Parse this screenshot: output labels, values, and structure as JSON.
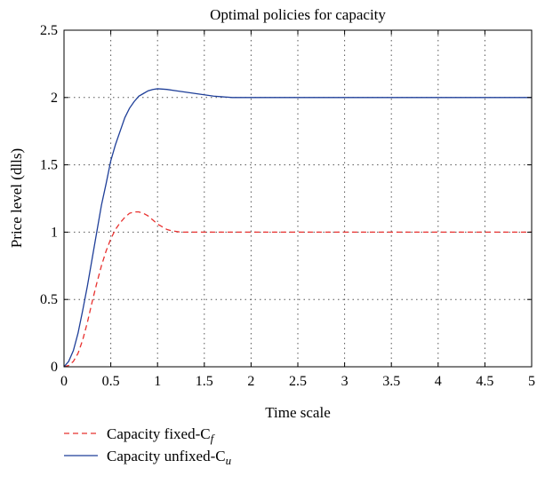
{
  "chart_data": {
    "type": "line",
    "title": "Optimal policies for capacity",
    "xlabel": "Time scale",
    "ylabel": "Price level (dlls)",
    "xlim": [
      0,
      5
    ],
    "ylim": [
      0,
      2.5
    ],
    "x_ticks": [
      "0",
      "0.5",
      "1",
      "1.5",
      "2",
      "2.5",
      "3",
      "3.5",
      "4",
      "4.5",
      "5"
    ],
    "y_ticks": [
      "0",
      "0.5",
      "1",
      "1.5",
      "2",
      "2.5"
    ],
    "grid": true,
    "legend_position": "below",
    "series": [
      {
        "name": "Capacity fixed-C",
        "subscript": "f",
        "color": "#e8312f",
        "style": "dashed",
        "x": [
          0,
          0.05,
          0.1,
          0.15,
          0.2,
          0.25,
          0.3,
          0.35,
          0.4,
          0.45,
          0.5,
          0.55,
          0.6,
          0.65,
          0.7,
          0.75,
          0.8,
          0.85,
          0.9,
          0.95,
          1.0,
          1.05,
          1.1,
          1.15,
          1.2,
          1.25,
          1.3,
          1.5,
          2.0,
          2.5,
          3.0,
          3.5,
          4.0,
          4.5,
          5.0
        ],
        "y": [
          0,
          0.01,
          0.04,
          0.1,
          0.2,
          0.33,
          0.48,
          0.62,
          0.75,
          0.86,
          0.95,
          1.02,
          1.07,
          1.11,
          1.14,
          1.15,
          1.15,
          1.14,
          1.12,
          1.09,
          1.06,
          1.04,
          1.02,
          1.01,
          1.005,
          1.0,
          1.0,
          1.0,
          1.0,
          1.0,
          1.0,
          1.0,
          1.0,
          1.0,
          1.0
        ]
      },
      {
        "name": "Capacity unfixed-C",
        "subscript": "u",
        "color": "#1f3f99",
        "style": "solid",
        "x": [
          0,
          0.05,
          0.1,
          0.15,
          0.2,
          0.25,
          0.3,
          0.35,
          0.4,
          0.45,
          0.5,
          0.55,
          0.6,
          0.65,
          0.7,
          0.75,
          0.8,
          0.85,
          0.9,
          0.95,
          1.0,
          1.1,
          1.2,
          1.3,
          1.4,
          1.5,
          1.6,
          1.7,
          1.8,
          2.0,
          2.5,
          3.0,
          3.5,
          4.0,
          4.5,
          5.0
        ],
        "y": [
          0,
          0.04,
          0.12,
          0.25,
          0.42,
          0.6,
          0.8,
          1.0,
          1.2,
          1.36,
          1.53,
          1.65,
          1.75,
          1.85,
          1.92,
          1.97,
          2.01,
          2.03,
          2.05,
          2.06,
          2.065,
          2.06,
          2.05,
          2.04,
          2.03,
          2.02,
          2.01,
          2.005,
          2.0,
          2.0,
          2.0,
          2.0,
          2.0,
          2.0,
          2.0,
          2.0
        ]
      }
    ]
  }
}
